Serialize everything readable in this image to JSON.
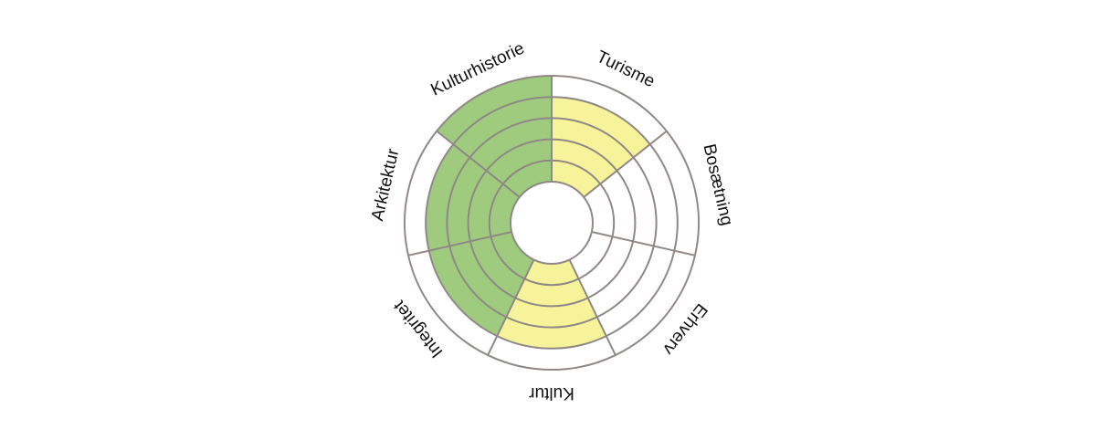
{
  "chart_data": {
    "type": "polar-area",
    "rings": 5,
    "max_value": 5,
    "categories": [
      "Kulturhistorie",
      "Turisme",
      "Bosætning",
      "Erhverv",
      "Kultur",
      "Integritet",
      "Arkitektur"
    ],
    "values": [
      5,
      4,
      0,
      0,
      4,
      4,
      4
    ],
    "sector_colors": [
      "#9fcb7e",
      "#f6f39b",
      "#f6f39b",
      "#f6f39b",
      "#f6f39b",
      "#9fcb7e",
      "#9fcb7e"
    ],
    "grid_color": "#8f8886",
    "background_color": "#ffffff"
  }
}
